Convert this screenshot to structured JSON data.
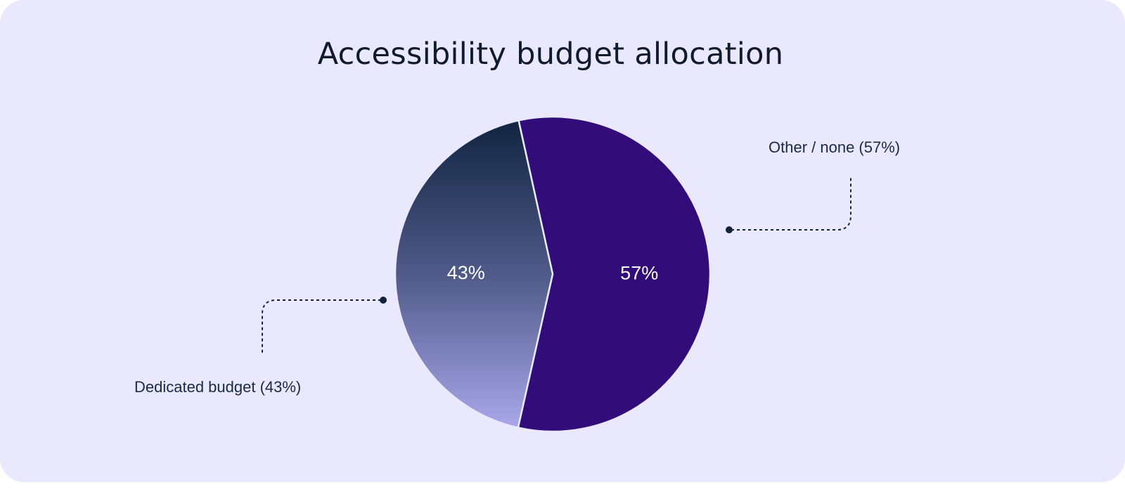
{
  "chart_data": {
    "type": "pie",
    "title": "Accessibility budget allocation",
    "slices": [
      {
        "label": "Other / none (57%)",
        "value": 57,
        "value_label": "57%",
        "color": "#320d7a"
      },
      {
        "label": "Dedicated budget (43%)",
        "value": 43,
        "value_label": "43%",
        "color_gradient": [
          "#112440",
          "#a7a5e8"
        ]
      }
    ]
  }
}
